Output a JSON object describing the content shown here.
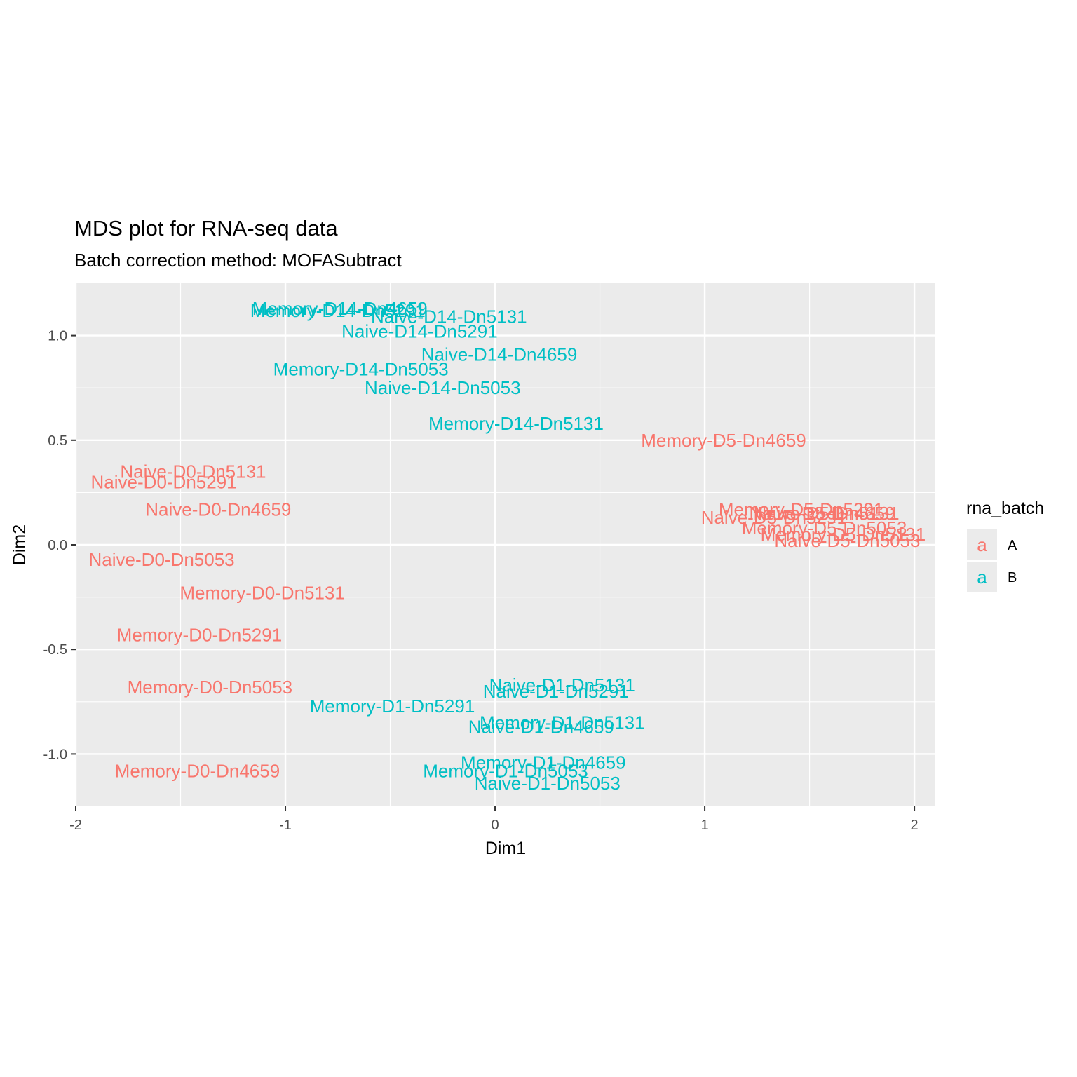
{
  "chart_data": {
    "type": "scatter",
    "title": "MDS plot for RNA-seq data",
    "subtitle": "Batch correction method: MOFASubtract",
    "xlabel": "Dim1",
    "ylabel": "Dim2",
    "xlim": [
      -2.0,
      2.1
    ],
    "ylim": [
      -1.25,
      1.25
    ],
    "x_ticks": [
      -2,
      -1,
      0,
      1,
      2
    ],
    "x_tick_labels": [
      "-2",
      "-1",
      "0",
      "1",
      "2"
    ],
    "y_ticks": [
      -1.0,
      -0.5,
      0.0,
      0.5,
      1.0
    ],
    "y_tick_labels": [
      "-1.0",
      "-0.5",
      "0.0",
      "0.5",
      "1.0"
    ],
    "grid": true,
    "legend": {
      "title": "rna_batch",
      "placement": "right",
      "key_glyph": "a",
      "entries": [
        {
          "label": "A",
          "color": "#F8766D"
        },
        {
          "label": "B",
          "color": "#00BFC4"
        }
      ]
    },
    "series": [
      {
        "name": "A",
        "color": "#F8766D",
        "points": [
          {
            "label": "Naive-D0-Dn5131",
            "x": -1.44,
            "y": 0.35
          },
          {
            "label": "Naive-D0-Dn5291",
            "x": -1.58,
            "y": 0.3
          },
          {
            "label": "Naive-D0-Dn4659",
            "x": -1.32,
            "y": 0.17
          },
          {
            "label": "Naive-D0-Dn5053",
            "x": -1.59,
            "y": -0.07
          },
          {
            "label": "Memory-D0-Dn5131",
            "x": -1.11,
            "y": -0.23
          },
          {
            "label": "Memory-D0-Dn5291",
            "x": -1.41,
            "y": -0.43
          },
          {
            "label": "Memory-D0-Dn5053",
            "x": -1.36,
            "y": -0.68
          },
          {
            "label": "Memory-D0-Dn4659",
            "x": -1.42,
            "y": -1.08
          },
          {
            "label": "Memory-D5-Dn4659",
            "x": 1.09,
            "y": 0.5
          },
          {
            "label": "Memory-D5-Dn5291",
            "x": 1.46,
            "y": 0.17
          },
          {
            "label": "Naive-D5-Dn5291",
            "x": 1.33,
            "y": 0.13
          },
          {
            "label": "Naive-D5-Dn5131",
            "x": 1.58,
            "y": 0.15
          },
          {
            "label": "Naive-D5-Dn4659",
            "x": 1.56,
            "y": 0.15
          },
          {
            "label": "Memory-D5-Dn5053",
            "x": 1.57,
            "y": 0.08
          },
          {
            "label": "Memory-D5-Dn5131",
            "x": 1.66,
            "y": 0.05
          },
          {
            "label": "Naive-D5-Dn5053",
            "x": 1.68,
            "y": 0.02
          }
        ]
      },
      {
        "name": "B",
        "color": "#00BFC4",
        "points": [
          {
            "label": "Memory-D14-Dn4659",
            "x": -0.74,
            "y": 1.13
          },
          {
            "label": "Memory-D14-Dn5291",
            "x": -0.75,
            "y": 1.12
          },
          {
            "label": "Naive-D14-Dn5131",
            "x": -0.22,
            "y": 1.09
          },
          {
            "label": "Naive-D14-Dn5291",
            "x": -0.36,
            "y": 1.02
          },
          {
            "label": "Naive-D14-Dn4659",
            "x": 0.02,
            "y": 0.91
          },
          {
            "label": "Memory-D14-Dn5053",
            "x": -0.64,
            "y": 0.84
          },
          {
            "label": "Naive-D14-Dn5053",
            "x": -0.25,
            "y": 0.75
          },
          {
            "label": "Memory-D14-Dn5131",
            "x": 0.1,
            "y": 0.58
          },
          {
            "label": "Naive-D1-Dn5131",
            "x": 0.32,
            "y": -0.67
          },
          {
            "label": "Naive-D1-Dn5291",
            "x": 0.29,
            "y": -0.7
          },
          {
            "label": "Memory-D1-Dn5291",
            "x": -0.49,
            "y": -0.77
          },
          {
            "label": "Memory-D1-Dn5131",
            "x": 0.32,
            "y": -0.85
          },
          {
            "label": "Naive-D1-Dn4659",
            "x": 0.22,
            "y": -0.87
          },
          {
            "label": "Memory-D1-Dn4659",
            "x": 0.23,
            "y": -1.04
          },
          {
            "label": "Memory-D1-Dn5053",
            "x": 0.05,
            "y": -1.08
          },
          {
            "label": "Naive-D1-Dn5053",
            "x": 0.25,
            "y": -1.14
          }
        ]
      }
    ]
  }
}
